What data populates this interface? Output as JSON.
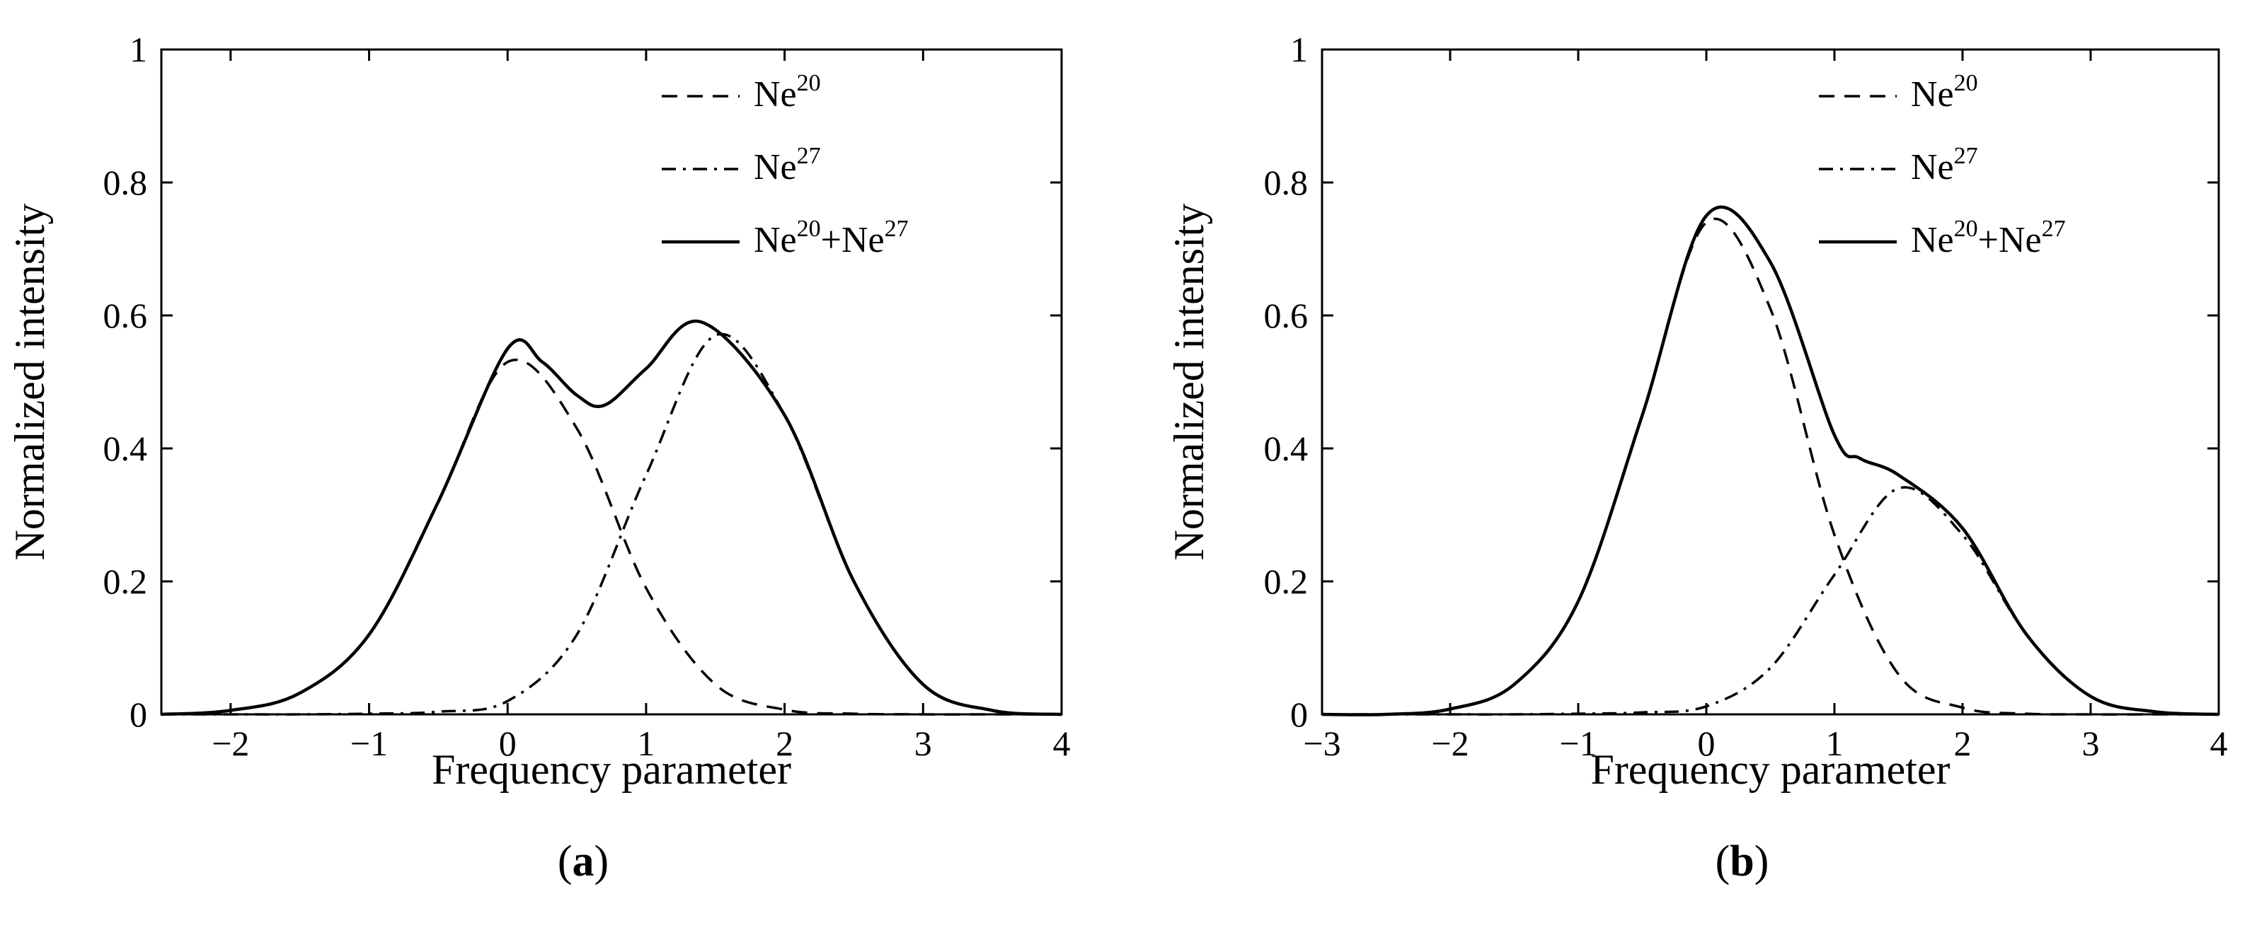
{
  "figure": {
    "panels": [
      "a",
      "b"
    ]
  },
  "chart_data": [
    {
      "type": "line",
      "panel_label": "a",
      "caption_open": "(",
      "caption_close": ")",
      "xlabel": "Frequency parameter",
      "ylabel": "Normalized intensity",
      "xlim": [
        -2.5,
        4
      ],
      "ylim": [
        0,
        1
      ],
      "xticks": [
        -2,
        -1,
        0,
        1,
        2,
        3,
        4
      ],
      "xtick_labels": [
        "−2",
        "−1",
        "0",
        "1",
        "2",
        "3",
        "4"
      ],
      "yticks": [
        0,
        0.2,
        0.4,
        0.6,
        0.8,
        1
      ],
      "ytick_labels": [
        "0",
        "0.2",
        "0.4",
        "0.6",
        "0.8",
        "1"
      ],
      "grid": false,
      "legend_position": "top-right",
      "legend": [
        {
          "base": "Ne",
          "sup": "20",
          "style": "dashed"
        },
        {
          "base": "Ne",
          "sup": "27",
          "style": "dashdot"
        },
        {
          "base": "Ne",
          "sup": "20",
          "plus": "+",
          "base2": "Ne",
          "sup2": "27",
          "style": "solid"
        }
      ],
      "series": [
        {
          "style": "dashed",
          "color": "#000000",
          "x": [
            -2.5,
            -2.0,
            -1.5,
            -1.0,
            -0.5,
            0.0,
            0.5,
            1.0,
            1.5,
            2.0,
            2.5,
            3.0,
            3.5,
            4.0
          ],
          "y": [
            0.0,
            0.006,
            0.032,
            0.12,
            0.32,
            0.53,
            0.43,
            0.19,
            0.045,
            0.007,
            0.001,
            0.0,
            0.0,
            0.0
          ]
        },
        {
          "style": "dashdot",
          "color": "#000000",
          "x": [
            -2.5,
            -2.0,
            -1.5,
            -1.0,
            -0.5,
            0.0,
            0.5,
            1.0,
            1.5,
            2.0,
            2.5,
            3.0,
            3.5,
            4.0
          ],
          "y": [
            0.0,
            0.0,
            0.0,
            0.001,
            0.004,
            0.02,
            0.12,
            0.36,
            0.57,
            0.45,
            0.2,
            0.045,
            0.006,
            0.0
          ]
        },
        {
          "style": "solid",
          "color": "#000000",
          "x": [
            -2.5,
            -2.0,
            -1.5,
            -1.0,
            -0.5,
            0.0,
            0.25,
            0.5,
            0.7,
            1.0,
            1.4,
            2.0,
            2.5,
            3.0,
            3.5,
            4.0
          ],
          "y": [
            0.0,
            0.006,
            0.032,
            0.12,
            0.32,
            0.55,
            0.53,
            0.48,
            0.465,
            0.52,
            0.59,
            0.45,
            0.2,
            0.045,
            0.006,
            0.0
          ]
        }
      ]
    },
    {
      "type": "line",
      "panel_label": "b",
      "caption_open": "(",
      "caption_close": ")",
      "xlabel": "Frequency parameter",
      "ylabel": "Normalized intensity",
      "xlim": [
        -3,
        4
      ],
      "ylim": [
        0,
        1
      ],
      "xticks": [
        -3,
        -2,
        -1,
        0,
        1,
        2,
        3,
        4
      ],
      "xtick_labels": [
        "−3",
        "−2",
        "−1",
        "0",
        "1",
        "2",
        "3",
        "4"
      ],
      "yticks": [
        0,
        0.2,
        0.4,
        0.6,
        0.8,
        1
      ],
      "ytick_labels": [
        "0",
        "0.2",
        "0.4",
        "0.6",
        "0.8",
        "1"
      ],
      "grid": false,
      "legend_position": "top-right",
      "legend": [
        {
          "base": "Ne",
          "sup": "20",
          "style": "dashed"
        },
        {
          "base": "Ne",
          "sup": "27",
          "style": "dashdot"
        },
        {
          "base": "Ne",
          "sup": "20",
          "plus": "+",
          "base2": "Ne",
          "sup2": "27",
          "style": "solid"
        }
      ],
      "series": [
        {
          "style": "dashed",
          "color": "#000000",
          "x": [
            -3.0,
            -2.5,
            -2.0,
            -1.5,
            -1.0,
            -0.5,
            0.0,
            0.5,
            1.0,
            1.5,
            2.0,
            2.5,
            3.0,
            3.5,
            4.0
          ],
          "y": [
            0.0,
            0.0,
            0.008,
            0.045,
            0.17,
            0.45,
            0.74,
            0.61,
            0.27,
            0.06,
            0.01,
            0.001,
            0.0,
            0.0,
            0.0
          ]
        },
        {
          "style": "dashdot",
          "color": "#000000",
          "x": [
            -3.0,
            -2.5,
            -2.0,
            -1.5,
            -1.0,
            -0.5,
            0.0,
            0.5,
            1.0,
            1.5,
            2.0,
            2.5,
            3.0,
            3.5,
            4.0
          ],
          "y": [
            0.0,
            0.0,
            0.0,
            0.0,
            0.001,
            0.003,
            0.012,
            0.07,
            0.21,
            0.34,
            0.27,
            0.12,
            0.027,
            0.004,
            0.0
          ]
        },
        {
          "style": "solid",
          "color": "#000000",
          "x": [
            -3.0,
            -2.5,
            -2.0,
            -1.5,
            -1.0,
            -0.5,
            0.0,
            0.5,
            1.0,
            1.2,
            1.5,
            2.0,
            2.5,
            3.0,
            3.5,
            4.0
          ],
          "y": [
            0.0,
            0.0,
            0.008,
            0.045,
            0.17,
            0.45,
            0.75,
            0.68,
            0.42,
            0.385,
            0.36,
            0.28,
            0.12,
            0.027,
            0.004,
            0.0
          ]
        }
      ]
    }
  ]
}
